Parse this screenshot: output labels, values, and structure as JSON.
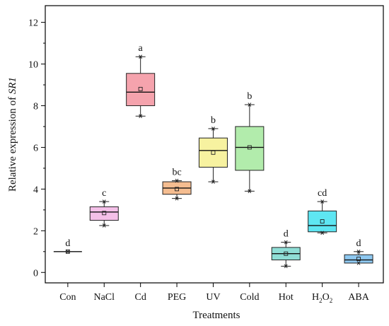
{
  "chart_data": {
    "type": "box",
    "xlabel": "Treatments",
    "ylabel_prefix": "Relative expression of ",
    "ylabel_gene": "SR1",
    "ylim": [
      -0.5,
      12.8
    ],
    "yticks": [
      0,
      2,
      4,
      6,
      8,
      10,
      12
    ],
    "grid": false,
    "legend": "none",
    "categories": [
      {
        "label": "Con",
        "sub": "",
        "suffix": "",
        "q1": 1.0,
        "median": 1.0,
        "q3": 1.0,
        "whisker_low": 1.0,
        "whisker_high": 1.0,
        "mean": 1.0,
        "outliers": [
          1.0
        ],
        "sig": "d",
        "color": "#ffffff"
      },
      {
        "label": "NaCl",
        "sub": "",
        "suffix": "",
        "q1": 2.5,
        "median": 2.9,
        "q3": 3.15,
        "whisker_low": 2.25,
        "whisker_high": 3.4,
        "mean": 2.85,
        "outliers": [
          2.25,
          3.4
        ],
        "sig": "c",
        "color": "#f4c0e8"
      },
      {
        "label": "Cd",
        "sub": "",
        "suffix": "",
        "q1": 8.0,
        "median": 8.65,
        "q3": 9.55,
        "whisker_low": 7.5,
        "whisker_high": 10.35,
        "mean": 8.8,
        "outliers": [
          7.5,
          10.35
        ],
        "sig": "a",
        "color": "#f5a3ad"
      },
      {
        "label": "PEG",
        "sub": "",
        "suffix": "",
        "q1": 3.75,
        "median": 4.05,
        "q3": 4.35,
        "whisker_low": 3.55,
        "whisker_high": 4.4,
        "mean": 4.0,
        "outliers": [
          3.55,
          4.4
        ],
        "sig": "bc",
        "color": "#f5bd90"
      },
      {
        "label": "UV",
        "sub": "",
        "suffix": "",
        "q1": 5.05,
        "median": 5.85,
        "q3": 6.45,
        "whisker_low": 4.35,
        "whisker_high": 6.9,
        "mean": 5.75,
        "outliers": [
          4.35,
          6.9
        ],
        "sig": "b",
        "color": "#f7f2a0"
      },
      {
        "label": "Cold",
        "sub": "",
        "suffix": "",
        "q1": 4.9,
        "median": 6.0,
        "q3": 7.0,
        "whisker_low": 3.9,
        "whisker_high": 8.05,
        "mean": 6.0,
        "outliers": [
          3.9,
          8.05
        ],
        "sig": "b",
        "color": "#b2ecac"
      },
      {
        "label": "Hot",
        "sub": "",
        "suffix": "",
        "q1": 0.6,
        "median": 0.9,
        "q3": 1.2,
        "whisker_low": 0.3,
        "whisker_high": 1.45,
        "mean": 0.9,
        "outliers": [
          0.3,
          1.45
        ],
        "sig": "d",
        "color": "#8fded6"
      },
      {
        "label": "H",
        "sub": "2",
        "suffix": "O",
        "sub2": "2",
        "q1": 1.95,
        "median": 2.25,
        "q3": 2.95,
        "whisker_low": 1.9,
        "whisker_high": 3.4,
        "mean": 2.45,
        "outliers": [
          1.9,
          3.4
        ],
        "sig": "cd",
        "color": "#5ee6f2"
      },
      {
        "label": "ABA",
        "sub": "",
        "suffix": "",
        "q1": 0.45,
        "median": 0.6,
        "q3": 0.85,
        "whisker_low": 0.45,
        "whisker_high": 1.0,
        "mean": 0.65,
        "outliers": [
          0.45,
          1.0
        ],
        "sig": "d",
        "color": "#8ec8f0"
      }
    ]
  }
}
